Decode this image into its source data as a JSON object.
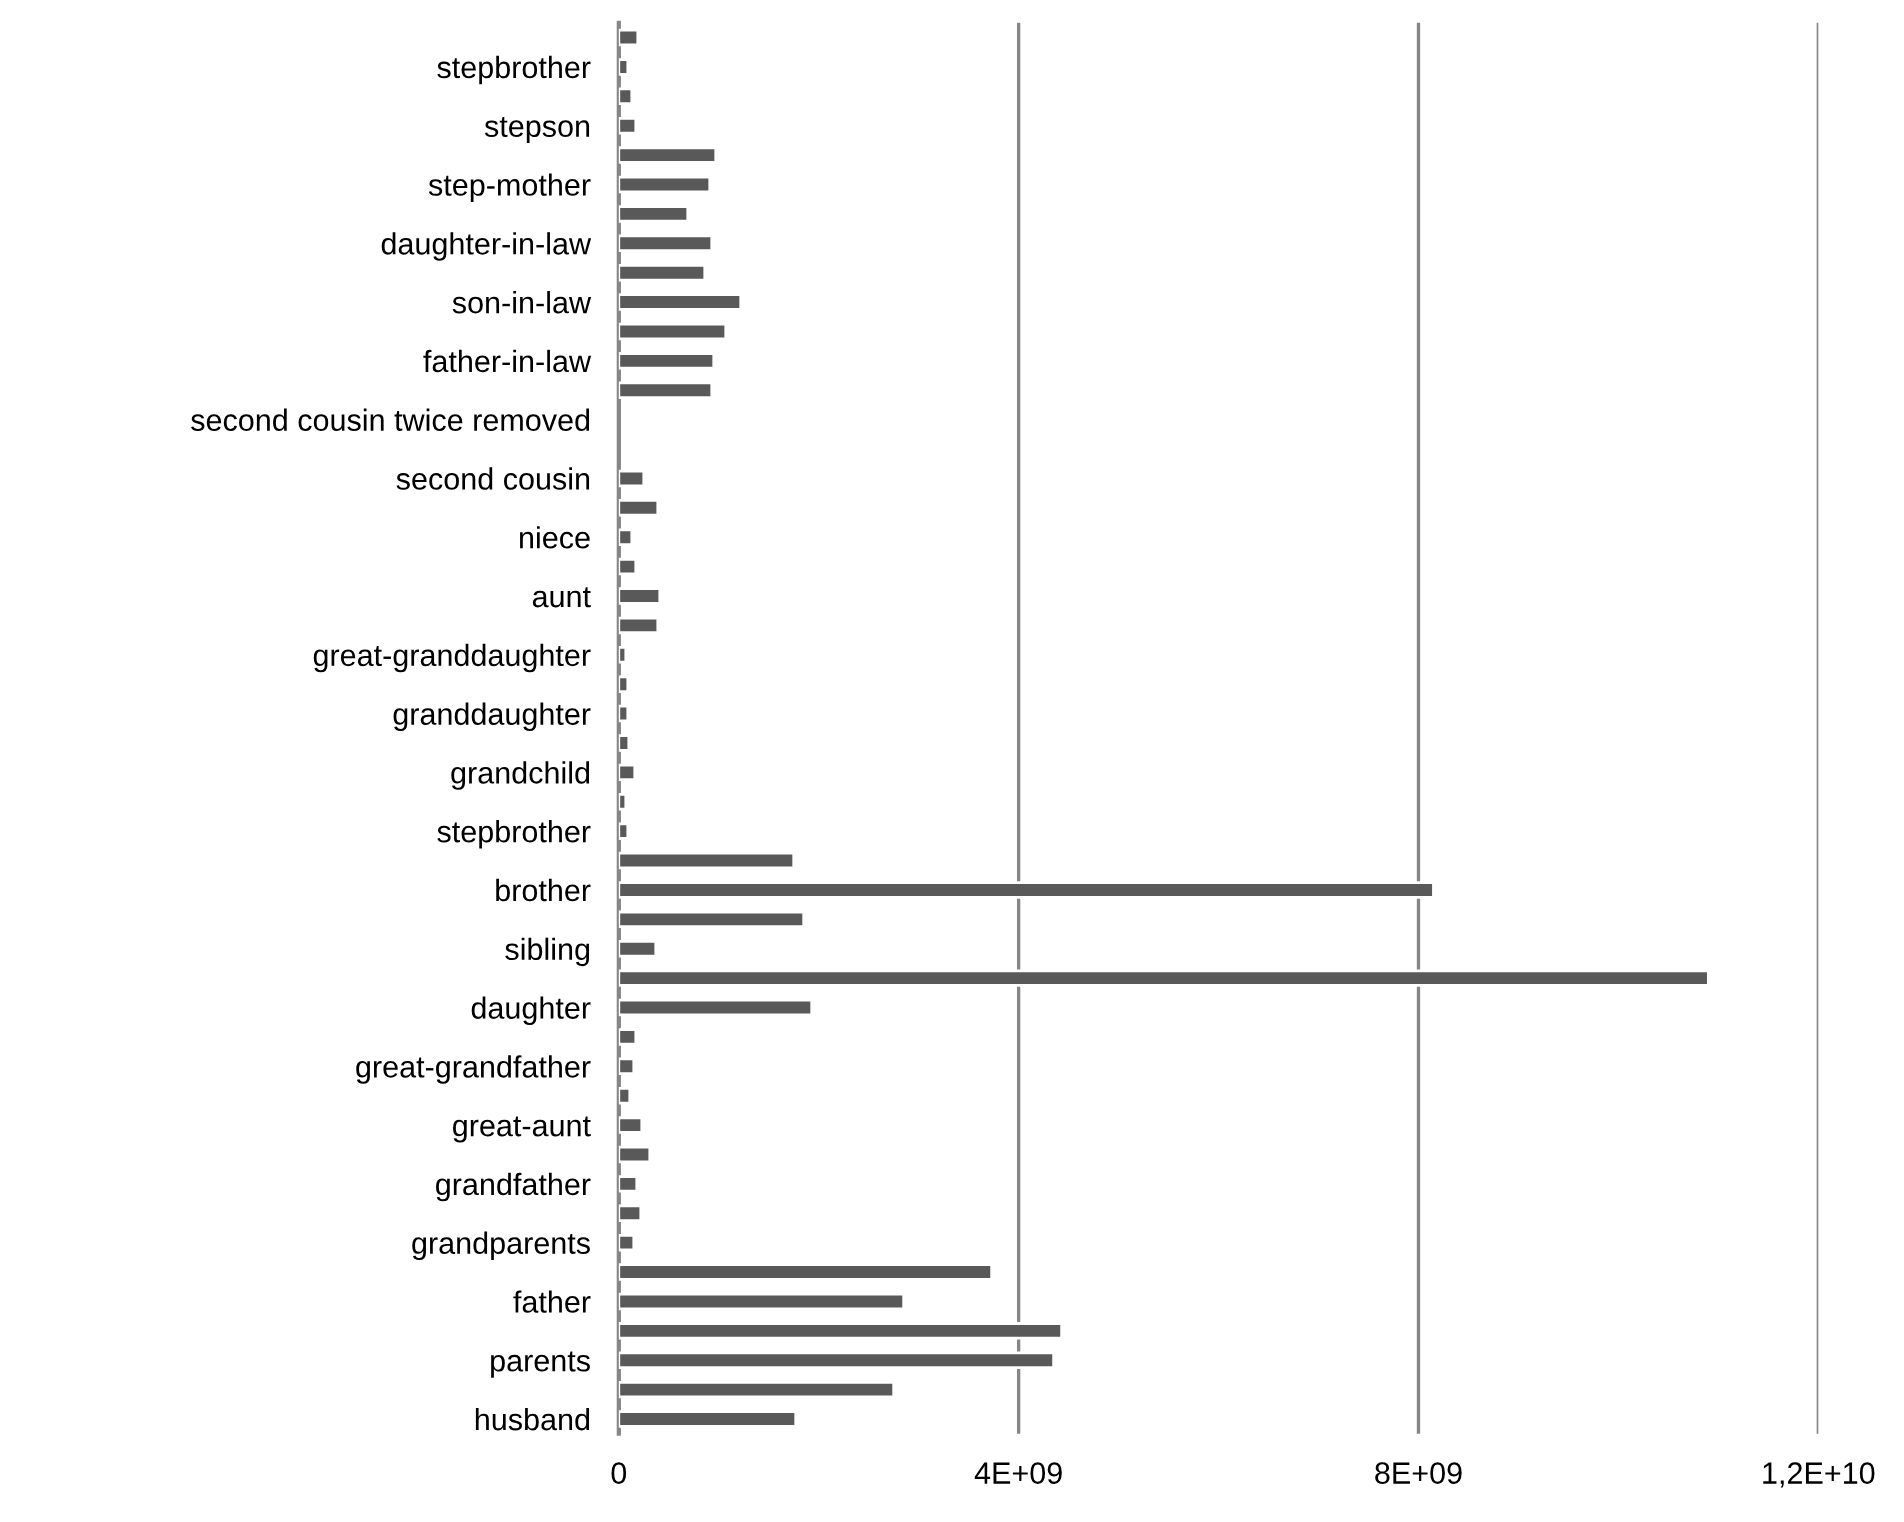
{
  "chart_data": {
    "type": "bar",
    "orientation": "horizontal",
    "categories": [
      null,
      "stepbrother",
      null,
      "stepson",
      null,
      "step-mother",
      null,
      "daughter-in-law",
      null,
      "son-in-law",
      null,
      "father-in-law",
      null,
      "second cousin twice removed",
      null,
      "second cousin",
      null,
      "niece",
      null,
      "aunt",
      null,
      "great-granddaughter",
      null,
      "granddaughter",
      null,
      "grandchild",
      null,
      "stepbrother",
      null,
      "brother",
      null,
      "sibling",
      null,
      "daughter",
      null,
      "great-grandfather",
      null,
      "great-aunt",
      null,
      "grandfather",
      null,
      "grandparents",
      null,
      "father",
      null,
      "parents",
      null,
      "husband"
    ],
    "values": [
      190000000,
      90000000,
      130000000,
      170000000,
      970000000,
      910000000,
      690000000,
      930000000,
      860000000,
      1220000000,
      1070000000,
      950000000,
      930000000,
      null,
      null,
      250000000,
      390000000,
      130000000,
      170000000,
      410000000,
      390000000,
      70000000,
      90000000,
      90000000,
      100000000,
      160000000,
      70000000,
      90000000,
      1750000000,
      8150000000,
      1850000000,
      370000000,
      10900000000,
      1930000000,
      170000000,
      150000000,
      110000000,
      230000000,
      310000000,
      180000000,
      220000000,
      150000000,
      3730000000,
      2850000000,
      4430000000,
      4350000000,
      2750000000,
      1770000000
    ],
    "color": "#595959",
    "xlim": [
      0,
      12000000000
    ],
    "xticks": [
      0,
      {
        "value": 4000000000,
        "label": "4E+09"
      },
      {
        "value": 8000000000,
        "label": "8E+09"
      },
      {
        "value": 12000000000,
        "label": "1,2E+10"
      }
    ],
    "grid": "x",
    "legend": false
  }
}
